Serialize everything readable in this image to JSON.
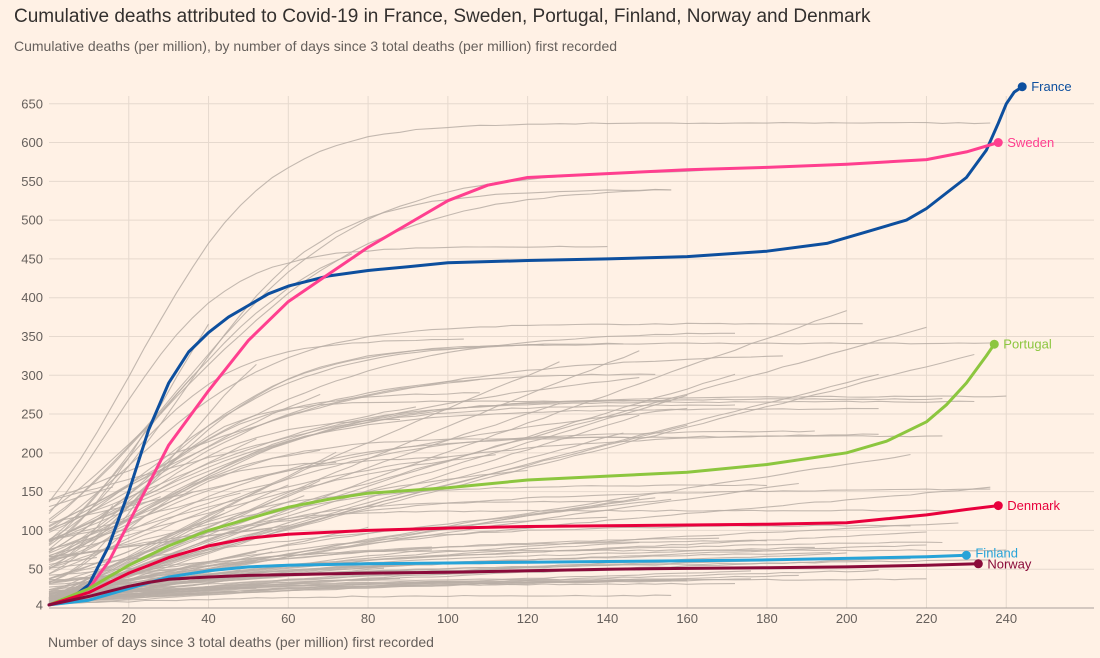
{
  "chart_data": {
    "type": "line",
    "title": "Cumulative deaths attributed to Covid-19 in France, Sweden, Portugal, Finland, Norway and Denmark",
    "subtitle": "Cumulative deaths (per million), by number of days since 3 total deaths (per million) first recorded",
    "xlabel": "Number of days since 3 total deaths (per million) first recorded",
    "ylabel": "",
    "xlim": [
      0,
      262
    ],
    "ylim": [
      0,
      660
    ],
    "x_ticks": [
      20,
      40,
      60,
      80,
      100,
      120,
      140,
      160,
      180,
      200,
      220,
      240
    ],
    "y_ticks": [
      {
        "value": 4,
        "label": "4"
      },
      {
        "value": 50,
        "label": "50"
      },
      {
        "value": 100,
        "label": "100"
      },
      {
        "value": 150,
        "label": "150"
      },
      {
        "value": 200,
        "label": "200"
      },
      {
        "value": 250,
        "label": "250"
      },
      {
        "value": 300,
        "label": "300"
      },
      {
        "value": 350,
        "label": "350"
      },
      {
        "value": 400,
        "label": "400"
      },
      {
        "value": 450,
        "label": "450"
      },
      {
        "value": 500,
        "label": "500"
      },
      {
        "value": 550,
        "label": "550"
      },
      {
        "value": 600,
        "label": "600"
      },
      {
        "value": 650,
        "label": "650"
      }
    ],
    "grid": true,
    "background_series_color": "#b8aea6",
    "series": [
      {
        "name": "France",
        "color": "#0d4f9e",
        "x": [
          0,
          5,
          10,
          15,
          20,
          25,
          30,
          35,
          40,
          45,
          50,
          55,
          60,
          70,
          80,
          90,
          100,
          120,
          140,
          160,
          180,
          195,
          205,
          215,
          220,
          225,
          230,
          235,
          238,
          240,
          242,
          244
        ],
        "y": [
          4,
          10,
          30,
          80,
          150,
          230,
          290,
          330,
          355,
          375,
          390,
          405,
          415,
          428,
          435,
          440,
          445,
          448,
          450,
          453,
          460,
          470,
          485,
          500,
          515,
          535,
          555,
          590,
          625,
          650,
          665,
          672
        ]
      },
      {
        "name": "Sweden",
        "color": "#ff3f8f",
        "x": [
          0,
          5,
          10,
          15,
          20,
          25,
          30,
          40,
          50,
          60,
          70,
          80,
          90,
          100,
          110,
          120,
          140,
          160,
          180,
          200,
          220,
          230,
          238
        ],
        "y": [
          4,
          10,
          25,
          60,
          110,
          160,
          210,
          280,
          345,
          395,
          430,
          465,
          495,
          525,
          545,
          555,
          560,
          565,
          568,
          572,
          578,
          588,
          600
        ]
      },
      {
        "name": "Portugal",
        "color": "#8cc63f",
        "x": [
          0,
          10,
          20,
          30,
          40,
          50,
          60,
          70,
          80,
          100,
          120,
          140,
          160,
          180,
          200,
          210,
          220,
          225,
          230,
          235,
          237
        ],
        "y": [
          4,
          25,
          55,
          80,
          100,
          115,
          130,
          140,
          148,
          155,
          165,
          170,
          175,
          185,
          200,
          215,
          240,
          262,
          290,
          325,
          340
        ]
      },
      {
        "name": "Denmark",
        "color": "#e8003c",
        "x": [
          0,
          10,
          20,
          30,
          40,
          50,
          60,
          80,
          100,
          120,
          140,
          160,
          180,
          200,
          210,
          220,
          230,
          238
        ],
        "y": [
          4,
          20,
          45,
          65,
          80,
          90,
          95,
          100,
          103,
          105,
          106,
          107,
          108,
          110,
          115,
          120,
          127,
          132
        ]
      },
      {
        "name": "Finland",
        "color": "#27a3d8",
        "x": [
          0,
          10,
          20,
          30,
          40,
          50,
          60,
          80,
          100,
          120,
          140,
          160,
          180,
          200,
          220,
          230
        ],
        "y": [
          4,
          10,
          25,
          40,
          48,
          53,
          55,
          57,
          58,
          59,
          60,
          61,
          62,
          64,
          66,
          68
        ]
      },
      {
        "name": "Norway",
        "color": "#8a0b3a",
        "x": [
          0,
          10,
          20,
          25,
          30,
          40,
          50,
          60,
          80,
          100,
          120,
          140,
          160,
          180,
          200,
          220,
          233
        ],
        "y": [
          4,
          15,
          28,
          33,
          37,
          40,
          42,
          43,
          45,
          46,
          48,
          50,
          51,
          52,
          53,
          55,
          57
        ]
      }
    ]
  }
}
